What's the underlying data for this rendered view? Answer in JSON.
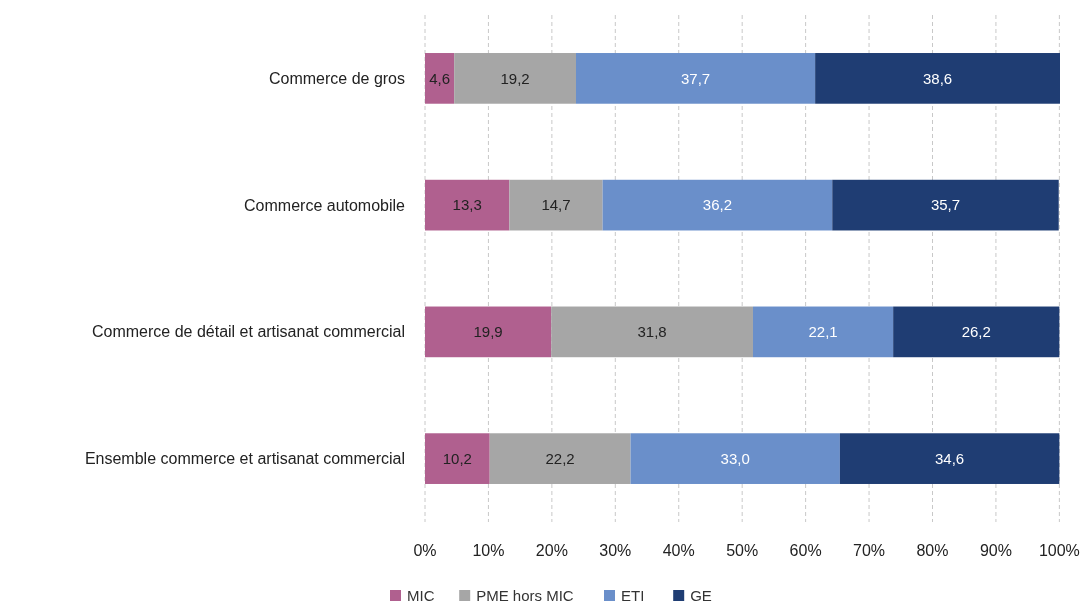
{
  "chart_data": {
    "type": "bar",
    "orientation": "horizontal",
    "stacked": true,
    "categories": [
      "Commerce de gros",
      "Commerce automobile",
      "Commerce de détail et artisanat commercial",
      "Ensemble commerce et artisanat commercial"
    ],
    "series": [
      {
        "name": "MIC",
        "color": "#b0608f",
        "values": [
          4.6,
          13.3,
          19.9,
          10.2
        ],
        "value_labels": [
          "4,6",
          "13,3",
          "19,9",
          "10,2"
        ]
      },
      {
        "name": "PME hors MIC",
        "color": "#a6a6a6",
        "values": [
          19.2,
          14.7,
          31.8,
          22.2
        ],
        "value_labels": [
          "19,2",
          "14,7",
          "31,8",
          "22,2"
        ]
      },
      {
        "name": "ETI",
        "color": "#6a8fca",
        "values": [
          37.7,
          36.2,
          22.1,
          33.0
        ],
        "value_labels": [
          "37,7",
          "36,2",
          "22,1",
          "33,0"
        ]
      },
      {
        "name": "GE",
        "color": "#1f3d73",
        "values": [
          38.6,
          35.7,
          26.2,
          34.6
        ],
        "value_labels": [
          "38,6",
          "35,7",
          "26,2",
          "34,6"
        ]
      }
    ],
    "xlim": [
      0,
      100.1
    ],
    "xticks": [
      {
        "value": 0,
        "label": "0%"
      },
      {
        "value": 10,
        "label": "10%"
      },
      {
        "value": 20,
        "label": "20%"
      },
      {
        "value": 30,
        "label": "30%"
      },
      {
        "value": 40,
        "label": "40%"
      },
      {
        "value": 50,
        "label": "50%"
      },
      {
        "value": 60,
        "label": "60%"
      },
      {
        "value": 70,
        "label": "70%"
      },
      {
        "value": 80,
        "label": "80%"
      },
      {
        "value": 90,
        "label": "90%"
      },
      {
        "value": 100,
        "label": "100%"
      }
    ],
    "grid": "x",
    "legend": "bottom"
  }
}
